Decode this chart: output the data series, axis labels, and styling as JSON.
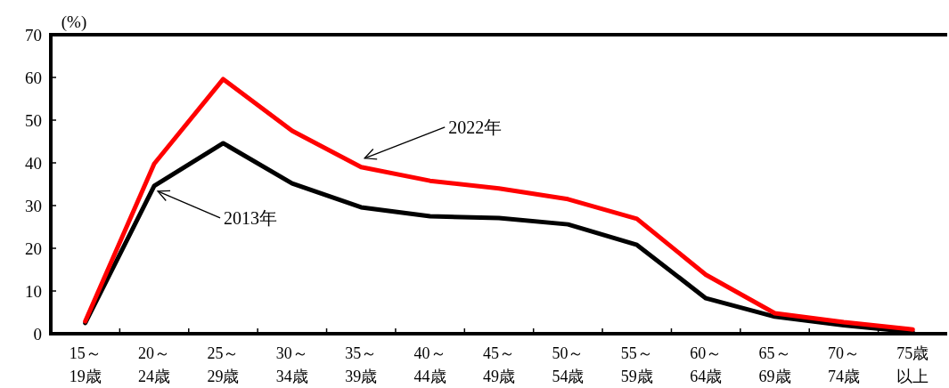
{
  "chart_data": {
    "type": "line",
    "ylabel": "(%)",
    "categories": [
      "15～19歳",
      "20～24歳",
      "25～29歳",
      "30～34歳",
      "35～39歳",
      "40～44歳",
      "45～49歳",
      "50～54歳",
      "55～59歳",
      "60～64歳",
      "65～69歳",
      "70～74歳",
      "75歳以上"
    ],
    "series": [
      {
        "name": "2013年",
        "color": "#000000",
        "values": [
          2.5,
          34.6,
          44.6,
          35.2,
          29.6,
          27.5,
          27.1,
          25.6,
          20.8,
          8.3,
          4.0,
          2.0,
          0.4
        ]
      },
      {
        "name": "2022年",
        "color": "#ff0000",
        "values": [
          2.9,
          39.8,
          59.6,
          47.5,
          39.0,
          35.8,
          34.0,
          31.5,
          26.9,
          13.8,
          4.8,
          2.7,
          1.0
        ]
      }
    ],
    "ylim": [
      0,
      70
    ],
    "yticks": [
      0,
      10,
      20,
      30,
      40,
      50,
      60,
      70
    ],
    "grid": false,
    "marker": "none",
    "line_style": "solid"
  }
}
